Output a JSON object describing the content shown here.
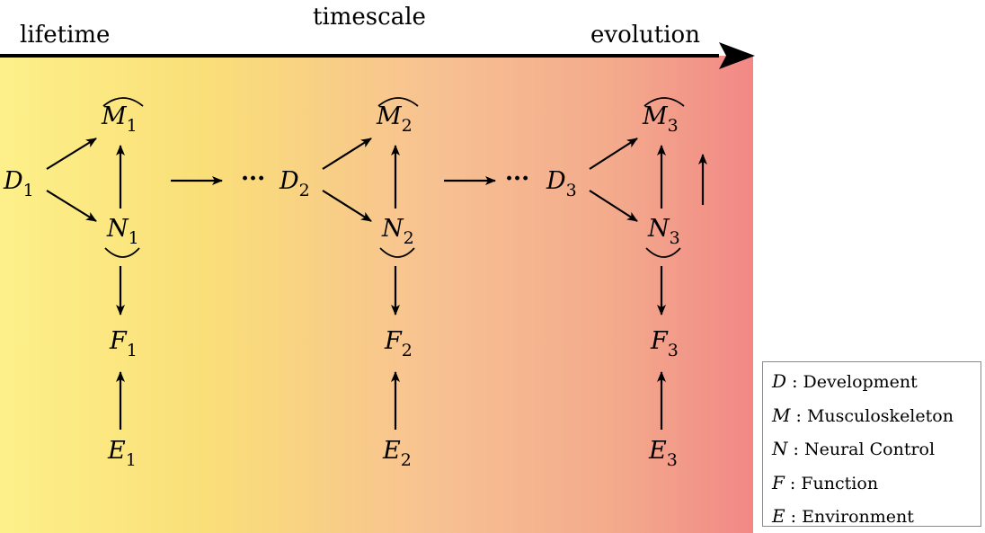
{
  "header": {
    "left": "lifetime",
    "center": "timescale",
    "right": "evolution"
  },
  "stages": [
    {
      "D": "D",
      "M": "M",
      "N": "N",
      "F": "F",
      "E": "E",
      "index": "1"
    },
    {
      "D": "D",
      "M": "M",
      "N": "N",
      "F": "F",
      "E": "E",
      "index": "2"
    },
    {
      "D": "D",
      "M": "M",
      "N": "N",
      "F": "F",
      "E": "E",
      "index": "3"
    }
  ],
  "ellipsis": "···",
  "legend": [
    {
      "symbol": "D",
      "separator": " : ",
      "label": "Development"
    },
    {
      "symbol": "M",
      "separator": " : ",
      "label": "Musculoskeleton"
    },
    {
      "symbol": "N",
      "separator": " : ",
      "label": "Neural Control"
    },
    {
      "symbol": "F",
      "separator": " : ",
      "label": "Function"
    },
    {
      "symbol": "E",
      "separator": " : ",
      "label": "Environment"
    }
  ],
  "colors": {
    "gradient": [
      "#fdf08a",
      "#fadf78",
      "#f7c192",
      "#f3aa8c",
      "#f28886"
    ],
    "arrow": "#000000",
    "legend_border": "#8a8a8a"
  }
}
